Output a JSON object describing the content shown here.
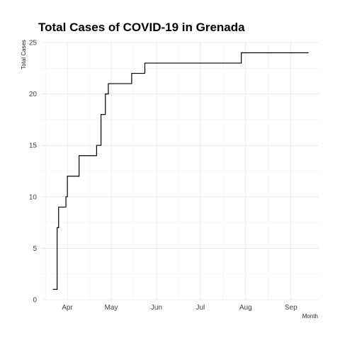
{
  "chart_data": {
    "type": "line",
    "title": "Total Cases of COVID-19 in Grenada",
    "xlabel": "Month",
    "ylabel": "Total Cases",
    "ylim": [
      0,
      25
    ],
    "xlim": [
      "2020-03-14",
      "2020-09-20"
    ],
    "yticks": [
      0,
      5,
      10,
      15,
      20,
      25
    ],
    "xticks": [
      {
        "date": "2020-04-01",
        "label": "Apr"
      },
      {
        "date": "2020-05-01",
        "label": "May"
      },
      {
        "date": "2020-06-01",
        "label": "Jun"
      },
      {
        "date": "2020-07-01",
        "label": "Jul"
      },
      {
        "date": "2020-08-01",
        "label": "Aug"
      },
      {
        "date": "2020-09-01",
        "label": "Sep"
      }
    ],
    "grid": true,
    "step": true,
    "line_color": "#000000",
    "series": [
      {
        "x": [
          "2020-03-22",
          "2020-03-25",
          "2020-03-26",
          "2020-03-28",
          "2020-03-31",
          "2020-04-01",
          "2020-04-03",
          "2020-04-09",
          "2020-04-21",
          "2020-04-22",
          "2020-04-24",
          "2020-04-27",
          "2020-04-29",
          "2020-05-15",
          "2020-05-24",
          "2020-07-29",
          "2020-09-13"
        ],
        "y": [
          1,
          7,
          9,
          9,
          10,
          12,
          12,
          14,
          15,
          15,
          18,
          20,
          21,
          22,
          23,
          24,
          24
        ]
      }
    ]
  }
}
